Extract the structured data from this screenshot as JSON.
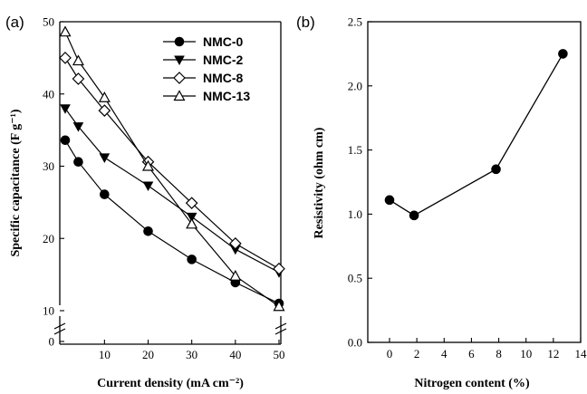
{
  "chart_data": [
    {
      "panel_label": "(a)",
      "type": "line",
      "xlabel": "Current density (mA cm⁻²)",
      "ylabel": "Specific capacitance (F g⁻¹)",
      "xlim": [
        0,
        50
      ],
      "ylim": [
        0,
        50
      ],
      "y_axis_break": [
        0,
        10
      ],
      "x_axis_break": [
        0,
        1
      ],
      "xticks": [
        10,
        20,
        30,
        40,
        50
      ],
      "xtick_labels": [
        "10",
        "20",
        "30",
        "40",
        "50"
      ],
      "yticks": [
        0,
        10,
        20,
        30,
        40,
        50
      ],
      "ytick_labels": [
        "0",
        "10",
        "20",
        "30",
        "40",
        "50"
      ],
      "legend_position": "top-right",
      "series": [
        {
          "name": "NMC-0",
          "marker": "circle-filled",
          "x": [
            1,
            4,
            10,
            20,
            30,
            40,
            50
          ],
          "values": [
            33.6,
            30.6,
            26.1,
            21.0,
            17.1,
            13.9,
            11.0
          ]
        },
        {
          "name": "NMC-2",
          "marker": "triangle-down-filled",
          "x": [
            1,
            4,
            10,
            20,
            30,
            40,
            50
          ],
          "values": [
            38.0,
            35.5,
            31.2,
            27.3,
            23.0,
            18.5,
            15.3
          ]
        },
        {
          "name": "NMC-8",
          "marker": "diamond-open",
          "x": [
            1,
            4,
            10,
            20,
            30,
            40,
            50
          ],
          "values": [
            45.0,
            42.1,
            37.7,
            30.6,
            24.9,
            19.3,
            15.8
          ]
        },
        {
          "name": "NMC-13",
          "marker": "triangle-up-open",
          "x": [
            1,
            4,
            10,
            20,
            30,
            40,
            50
          ],
          "values": [
            48.6,
            44.6,
            39.5,
            30.0,
            22.0,
            14.8,
            10.6
          ]
        }
      ]
    },
    {
      "panel_label": "(b)",
      "type": "line",
      "xlabel": "Nitrogen content (%)",
      "ylabel": "Resistivity (ohm cm)",
      "xlim": [
        -2,
        14
      ],
      "ylim": [
        0,
        2.5
      ],
      "xticks": [
        0,
        2,
        4,
        6,
        8,
        10,
        12,
        14
      ],
      "xtick_labels": [
        "0",
        "2",
        "4",
        "6",
        "8",
        "10",
        "12",
        "14"
      ],
      "yticks": [
        0,
        0.5,
        1.0,
        1.5,
        2.0,
        2.5
      ],
      "ytick_labels": [
        "0.0",
        "0.5",
        "1.0",
        "1.5",
        "2.0",
        "2.5"
      ],
      "series": [
        {
          "marker": "circle-filled",
          "x": [
            0,
            1.8,
            7.8,
            12.7
          ],
          "values": [
            1.11,
            0.99,
            1.35,
            2.25
          ]
        }
      ]
    }
  ]
}
